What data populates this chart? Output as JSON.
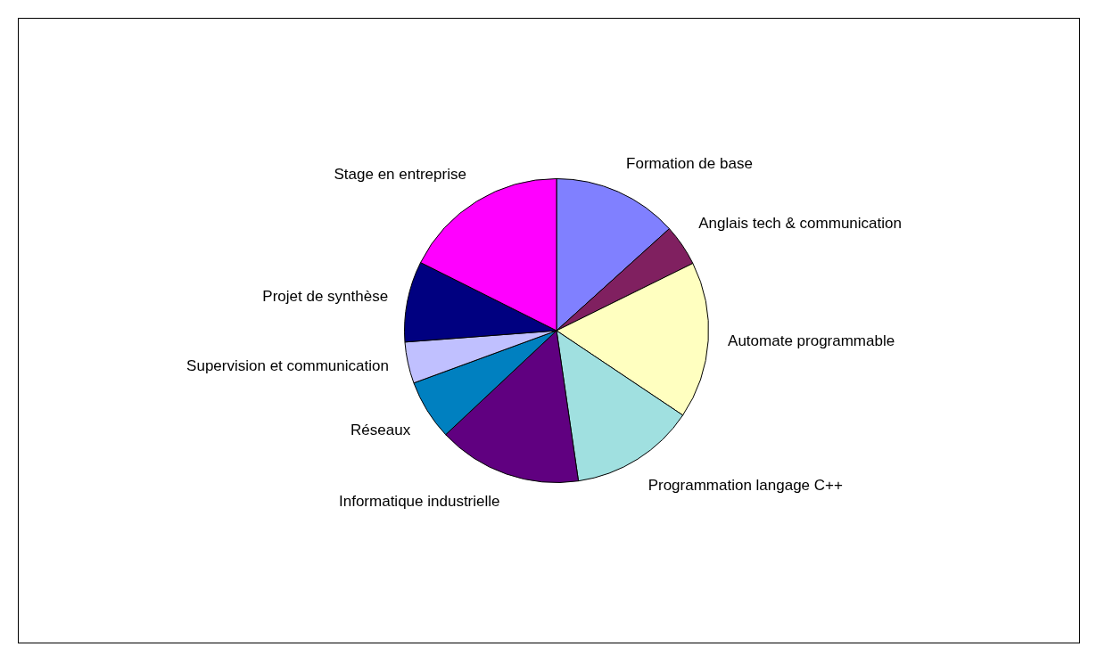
{
  "chart_data": {
    "type": "pie",
    "categories": [
      "Formation de base",
      "Anglais tech & communication",
      "Automate programmable",
      "Programmation langage C++",
      "Informatique industrielle",
      "Réseaux",
      "Supervision et communication",
      "Projet de synthèse",
      "Stage en entreprise"
    ],
    "values": [
      13.3,
      4.4,
      16.7,
      13.3,
      15.3,
      6.4,
      4.4,
      8.6,
      17.6
    ],
    "colors": [
      "#8080ff",
      "#802060",
      "#ffffc0",
      "#a0e0e0",
      "#600080",
      "#0080c0",
      "#c0c0ff",
      "#000080",
      "#ff00ff"
    ],
    "legend": false
  }
}
